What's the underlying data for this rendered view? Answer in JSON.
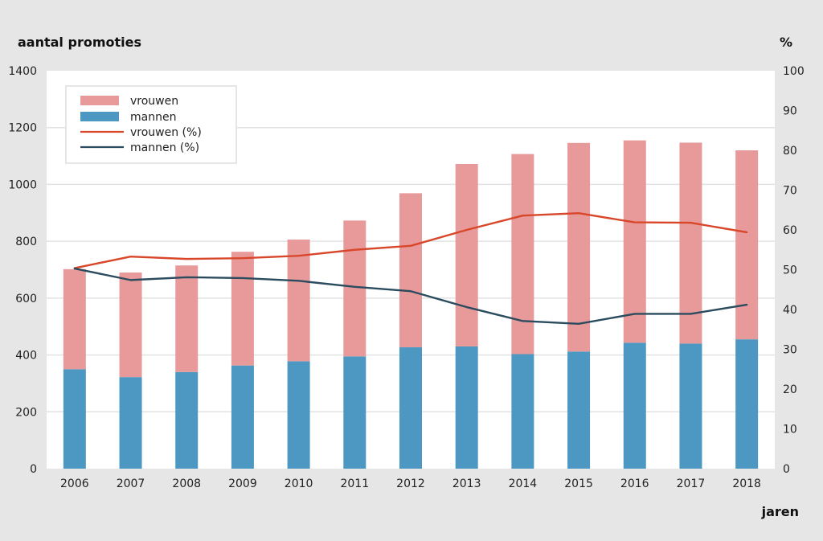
{
  "chart_data": {
    "type": "bar",
    "stacked": true,
    "categories": [
      "2006",
      "2007",
      "2008",
      "2009",
      "2010",
      "2011",
      "2012",
      "2013",
      "2014",
      "2015",
      "2016",
      "2017",
      "2018"
    ],
    "series": [
      {
        "name": "mannen",
        "type": "bar",
        "axis": "left",
        "color": "#4d98c2",
        "values": [
          350,
          322,
          340,
          363,
          378,
          395,
          427,
          430,
          403,
          412,
          443,
          440,
          455
        ]
      },
      {
        "name": "vrouwen",
        "type": "bar",
        "axis": "left",
        "color": "#e89a9a",
        "values": [
          352,
          368,
          375,
          400,
          428,
          478,
          542,
          642,
          704,
          734,
          712,
          707,
          665
        ]
      },
      {
        "name": "vrouwen (%)",
        "type": "line",
        "axis": "right",
        "color": "#d9472b",
        "values": [
          50.4,
          53.3,
          52.7,
          52.9,
          53.5,
          55.0,
          56.0,
          60.0,
          63.6,
          64.2,
          61.9,
          61.8,
          59.4
        ]
      },
      {
        "name": "mannen (%)",
        "type": "line",
        "axis": "right",
        "color": "#2b4b5e",
        "values": [
          50.3,
          47.4,
          48.1,
          47.9,
          47.2,
          45.7,
          44.6,
          40.6,
          37.1,
          36.4,
          38.9,
          38.9,
          41.2
        ]
      }
    ],
    "legend": [
      "vrouwen",
      "mannen",
      "vrouwen (%)",
      "mannen (%)"
    ],
    "ylabel": "aantal promoties",
    "y2label": "%",
    "xlabel": "jaren",
    "ylim": [
      0,
      1400
    ],
    "y2lim": [
      0,
      100
    ],
    "yticks": [
      "0",
      "200",
      "400",
      "600",
      "800",
      "1000",
      "1200",
      "1400"
    ],
    "y2ticks": [
      "0",
      "10",
      "20",
      "30",
      "40",
      "50",
      "60",
      "70",
      "80",
      "90",
      "100"
    ],
    "legend_position": "top-left",
    "grid": true
  }
}
